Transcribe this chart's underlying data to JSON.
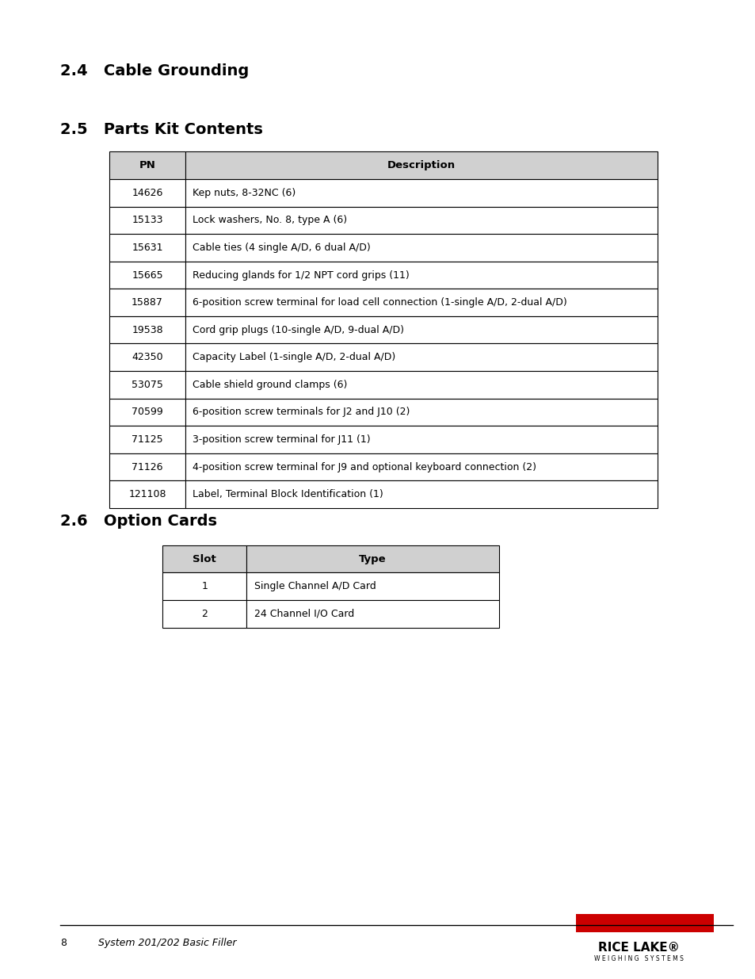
{
  "bg_color": "#ffffff",
  "section_24_title": "2.4   Cable Grounding",
  "section_25_title": "2.5   Parts Kit Contents",
  "section_26_title": "2.6   Option Cards",
  "table1_headers": [
    "PN",
    "Description"
  ],
  "table1_rows": [
    [
      "14626",
      "Kep nuts, 8-32NC (6)"
    ],
    [
      "15133",
      "Lock washers, No. 8, type A (6)"
    ],
    [
      "15631",
      "Cable ties (4 single A/D, 6 dual A/D)"
    ],
    [
      "15665",
      "Reducing glands for 1/2 NPT cord grips (11)"
    ],
    [
      "15887",
      "6-position screw terminal for load cell connection (1-single A/D, 2-dual A/D)"
    ],
    [
      "19538",
      "Cord grip plugs (10-single A/D, 9-dual A/D)"
    ],
    [
      "42350",
      "Capacity Label (1-single A/D, 2-dual A/D)"
    ],
    [
      "53075",
      "Cable shield ground clamps (6)"
    ],
    [
      "70599",
      "6-position screw terminals for J2 and J10 (2)"
    ],
    [
      "71125",
      "3-position screw terminal for J11 (1)"
    ],
    [
      "71126",
      "4-position screw terminal for J9 and optional keyboard connection (2)"
    ],
    [
      "121108",
      "Label, Terminal Block Identification (1)"
    ]
  ],
  "table2_headers": [
    "Slot",
    "Type"
  ],
  "table2_rows": [
    [
      "1",
      "Single Channel A/D Card"
    ],
    [
      "2",
      "24 Channel I/O Card"
    ]
  ],
  "footer_page": "8",
  "footer_text": "System 201/202 Basic Filler",
  "header_color": "#d0d0d0",
  "border_color": "#000000",
  "title_font_size": 14,
  "body_font_size": 9,
  "header_font_size": 9.5,
  "red_color": "#cc0000"
}
